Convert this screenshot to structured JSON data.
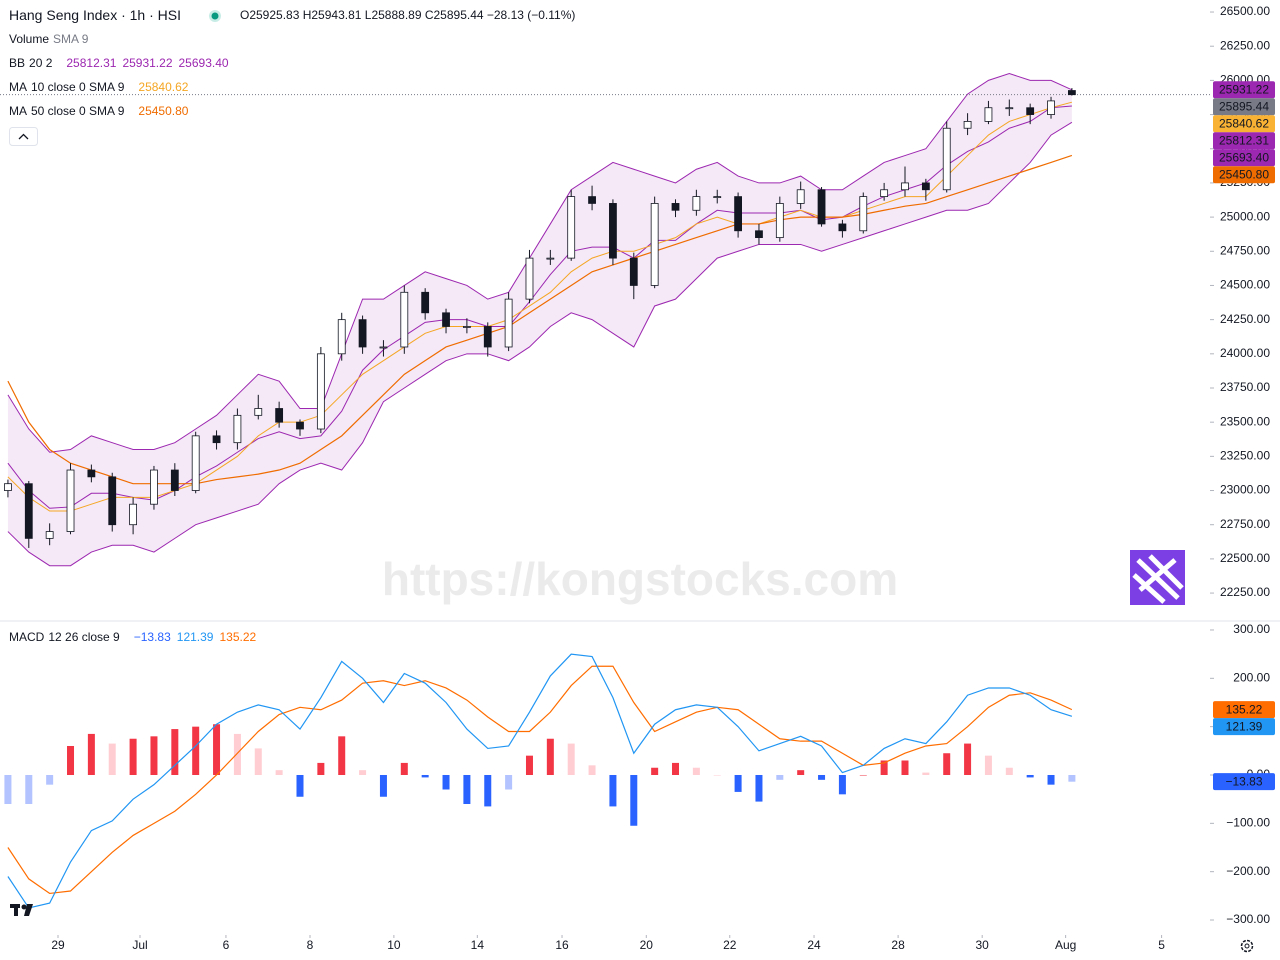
{
  "chart_data": [
    {
      "type": "candlestick",
      "title": "Hang Seng Index · 1h · HSI",
      "ohlc_label": "O25925.83 H25943.81 L25888.89 C25895.44 −28.13 (−0.11%)",
      "watermark": "https://kongstocks.com",
      "legend_rows": [
        {
          "name": "Volume",
          "params": "SMA 9",
          "values": [],
          "color": "#131722"
        },
        {
          "name": "BB",
          "params": "20 2",
          "values": [
            "25812.31",
            "25931.22",
            "25693.40"
          ],
          "color": "#9c27b0"
        },
        {
          "name": "MA",
          "params": "10 close 0 SMA 9",
          "values": [
            "25840.62"
          ],
          "color": "#f5a623"
        },
        {
          "name": "MA",
          "params": "50 close 0 SMA 9",
          "values": [
            "25450.80"
          ],
          "color": "#ef6c00"
        }
      ],
      "x": [
        0,
        1,
        2,
        3,
        4,
        5,
        6,
        7,
        8,
        9,
        10,
        11,
        12,
        13,
        14,
        15,
        16,
        17,
        18,
        19,
        20,
        21,
        22,
        23,
        24,
        25,
        26,
        27,
        28,
        29,
        30,
        31,
        32,
        33,
        34,
        35,
        36,
        37,
        38,
        39,
        40,
        41,
        42,
        43,
        44,
        45,
        46,
        47,
        48,
        49,
        50,
        51
      ],
      "open": [
        23000,
        23050,
        22650,
        22700,
        23150,
        23100,
        22750,
        22900,
        23150,
        23000,
        23400,
        23350,
        23550,
        23600,
        23500,
        23450,
        24000,
        24250,
        24050,
        24050,
        24450,
        24300,
        24200,
        24200,
        24050,
        24400,
        24700,
        24700,
        25150,
        25100,
        24700,
        24500,
        25100,
        25050,
        25150,
        25150,
        24900,
        24850,
        25100,
        25200,
        24950,
        24900,
        25150,
        25200,
        25250,
        25200,
        25650,
        25700,
        25800,
        25800,
        25750,
        25925.83
      ],
      "high": [
        23080,
        23070,
        22760,
        23200,
        23190,
        23130,
        22950,
        23180,
        23200,
        23430,
        23440,
        23600,
        23700,
        23650,
        23520,
        24050,
        24300,
        24280,
        24100,
        24500,
        24480,
        24330,
        24260,
        24230,
        24450,
        24760,
        24760,
        25200,
        25230,
        25130,
        24740,
        25150,
        25130,
        25200,
        25200,
        25180,
        24950,
        25150,
        25260,
        25220,
        24980,
        25180,
        25250,
        25370,
        25280,
        25700,
        25760,
        25850,
        25860,
        25830,
        25880,
        25943.81
      ],
      "low": [
        22950,
        22580,
        22600,
        22680,
        23060,
        22700,
        22680,
        22860,
        22960,
        22980,
        23300,
        23300,
        23520,
        23460,
        23400,
        23420,
        23950,
        24000,
        23980,
        24000,
        24250,
        24150,
        24150,
        23980,
        24020,
        24370,
        24650,
        24680,
        25050,
        24650,
        24400,
        24480,
        25000,
        25010,
        25100,
        24850,
        24800,
        24820,
        25060,
        24930,
        24850,
        24880,
        25120,
        25150,
        25120,
        25180,
        25600,
        25680,
        25740,
        25680,
        25720,
        25888.89
      ],
      "close": [
        23050,
        22650,
        22700,
        23150,
        23100,
        22750,
        22900,
        23150,
        23000,
        23400,
        23350,
        23550,
        23600,
        23500,
        23450,
        24000,
        24250,
        24050,
        24050,
        24450,
        24300,
        24200,
        24200,
        24050,
        24400,
        24700,
        24700,
        25150,
        25100,
        24700,
        24500,
        25100,
        25050,
        25150,
        25150,
        24900,
        24850,
        25100,
        25200,
        24950,
        24900,
        25150,
        25200,
        25250,
        25200,
        25650,
        25700,
        25800,
        25800,
        25750,
        25850,
        25895.44
      ],
      "up_color": "#ffffff",
      "down_color": "#131722",
      "bands": {
        "color": "#9c27b0",
        "fill": "#9c27b0",
        "upper": [
          23700,
          23450,
          23280,
          23300,
          23400,
          23350,
          23300,
          23300,
          23350,
          23450,
          23550,
          23700,
          23850,
          23800,
          23600,
          23600,
          24000,
          24400,
          24400,
          24500,
          24600,
          24550,
          24500,
          24400,
          24450,
          24700,
          24950,
          25200,
          25300,
          25400,
          25350,
          25300,
          25250,
          25350,
          25400,
          25300,
          25250,
          25250,
          25300,
          25200,
          25200,
          25300,
          25400,
          25450,
          25500,
          25700,
          25900,
          26000,
          26050,
          26000,
          26000,
          25931.22
        ],
        "basis": [
          23200,
          23000,
          22870,
          22880,
          22980,
          22980,
          22950,
          22930,
          23000,
          23100,
          23180,
          23280,
          23380,
          23430,
          23380,
          23400,
          23580,
          23880,
          24030,
          24130,
          24230,
          24250,
          24250,
          24200,
          24200,
          24380,
          24580,
          24750,
          24780,
          24780,
          24700,
          24830,
          24830,
          24950,
          25050,
          25030,
          25030,
          25030,
          25050,
          24980,
          25000,
          25080,
          25150,
          25200,
          25250,
          25380,
          25480,
          25550,
          25650,
          25700,
          25800,
          25812.31
        ],
        "lower": [
          22700,
          22550,
          22450,
          22450,
          22550,
          22600,
          22600,
          22550,
          22650,
          22750,
          22800,
          22850,
          22900,
          23050,
          23150,
          23200,
          23150,
          23350,
          23650,
          23750,
          23850,
          23950,
          24000,
          24000,
          23950,
          24050,
          24200,
          24300,
          24250,
          24150,
          24050,
          24350,
          24400,
          24550,
          24700,
          24750,
          24800,
          24800,
          24800,
          24750,
          24800,
          24850,
          24900,
          24950,
          25000,
          25050,
          25050,
          25100,
          25250,
          25400,
          25600,
          25693.4
        ]
      },
      "lines": [
        {
          "color": "#f5a623",
          "values": [
            23100,
            22950,
            22850,
            22850,
            22900,
            22950,
            22950,
            22950,
            23000,
            23050,
            23150,
            23250,
            23400,
            23500,
            23500,
            23550,
            23700,
            23850,
            23950,
            24050,
            24150,
            24200,
            24200,
            24200,
            24250,
            24350,
            24450,
            24600,
            24700,
            24750,
            24750,
            24800,
            24850,
            24950,
            25000,
            24950,
            24950,
            25000,
            25050,
            25000,
            25000,
            25050,
            25100,
            25150,
            25150,
            25300,
            25450,
            25600,
            25700,
            25750,
            25800,
            25840.62
          ]
        },
        {
          "color": "#ef6c00",
          "values": [
            23800,
            23500,
            23300,
            23200,
            23150,
            23100,
            23050,
            23050,
            23050,
            23050,
            23080,
            23100,
            23120,
            23150,
            23200,
            23300,
            23400,
            23550,
            23700,
            23850,
            23950,
            24050,
            24100,
            24150,
            24200,
            24300,
            24400,
            24500,
            24600,
            24650,
            24700,
            24750,
            24800,
            24850,
            24900,
            24950,
            24950,
            24980,
            25000,
            25000,
            25000,
            25020,
            25050,
            25080,
            25100,
            25150,
            25200,
            25250,
            25300,
            25350,
            25400,
            25450.8
          ]
        }
      ],
      "last_price": 25895.44,
      "xlim": [
        -0.38,
        57.62
      ],
      "ylim": [
        22053,
        26588
      ],
      "yticks": [
        {
          "value": 26500,
          "label": "26500.00"
        },
        {
          "value": 26250,
          "label": "26250.00"
        },
        {
          "value": 26000,
          "label": "26000.00"
        },
        {
          "value": 25750,
          "label": "25750.00"
        },
        {
          "value": 25500,
          "label": "25500.00"
        },
        {
          "value": 25250,
          "label": "25250.00"
        },
        {
          "value": 25000,
          "label": "25000.00"
        },
        {
          "value": 24750,
          "label": "24750.00"
        },
        {
          "value": 24500,
          "label": "24500.00"
        },
        {
          "value": 24250,
          "label": "24250.00"
        },
        {
          "value": 24000,
          "label": "24000.00"
        },
        {
          "value": 23750,
          "label": "23750.00"
        },
        {
          "value": 23500,
          "label": "23500.00"
        },
        {
          "value": 23250,
          "label": "23250.00"
        },
        {
          "value": 23000,
          "label": "23000.00"
        },
        {
          "value": 22750,
          "label": "22750.00"
        },
        {
          "value": 22500,
          "label": "22500.00"
        },
        {
          "value": 22250,
          "label": "22250.00"
        }
      ],
      "price_tags": [
        {
          "value": 25931.22,
          "label": "25931.22",
          "color": "#9c27b0",
          "text_color": "#ffffff"
        },
        {
          "value": 25895.44,
          "label": "25895.44",
          "color": "#787b86",
          "text_color": "#ffffff"
        },
        {
          "value": 25840.62,
          "label": "25840.62",
          "color": "#f9b233",
          "text_color": "#131722"
        },
        {
          "value": 25812.31,
          "label": "25812.31",
          "color": "#9c27b0",
          "text_color": "#ffffff"
        },
        {
          "value": 25693.4,
          "label": "25693.40",
          "color": "#9c27b0",
          "text_color": "#ffffff"
        },
        {
          "value": 25450.8,
          "label": "25450.80",
          "color": "#ef6c00",
          "text_color": "#ffffff"
        }
      ]
    },
    {
      "type": "macd",
      "title": "MACD",
      "params": "12 26 close 9",
      "legend_values": [
        "−13.83",
        "121.39",
        "135.22"
      ],
      "legend_colors": [
        "#2962ff",
        "#2196f3",
        "#ff6d00"
      ],
      "x": [
        0,
        1,
        2,
        3,
        4,
        5,
        6,
        7,
        8,
        9,
        10,
        11,
        12,
        13,
        14,
        15,
        16,
        17,
        18,
        19,
        20,
        21,
        22,
        23,
        24,
        25,
        26,
        27,
        28,
        29,
        30,
        31,
        32,
        33,
        34,
        35,
        36,
        37,
        38,
        39,
        40,
        41,
        42,
        43,
        44,
        45,
        46,
        47,
        48,
        49,
        50,
        51
      ],
      "histogram": [
        -60,
        -60,
        -20,
        60,
        85,
        65,
        75,
        80,
        95,
        100,
        105,
        85,
        55,
        10,
        -45,
        25,
        80,
        10,
        -45,
        25,
        -5,
        -30,
        -60,
        -65,
        -30,
        40,
        75,
        65,
        20,
        -65,
        -105,
        15,
        25,
        15,
        0,
        -35,
        -55,
        -10,
        10,
        -10,
        -40,
        0,
        30,
        30,
        5,
        45,
        65,
        40,
        15,
        -5,
        -20,
        -13.83
      ],
      "macd": [
        -210,
        -275,
        -265,
        -180,
        -115,
        -95,
        -50,
        -20,
        20,
        60,
        105,
        130,
        145,
        135,
        95,
        160,
        235,
        200,
        150,
        210,
        190,
        150,
        95,
        55,
        60,
        130,
        205,
        250,
        245,
        160,
        45,
        105,
        135,
        145,
        140,
        100,
        50,
        65,
        80,
        60,
        5,
        20,
        55,
        75,
        65,
        110,
        165,
        180,
        180,
        165,
        135,
        121.39
      ],
      "signal": [
        -150,
        -215,
        -245,
        -240,
        -200,
        -160,
        -125,
        -100,
        -75,
        -40,
        0,
        45,
        90,
        125,
        140,
        135,
        155,
        190,
        195,
        185,
        195,
        180,
        155,
        120,
        90,
        90,
        130,
        185,
        225,
        225,
        150,
        90,
        110,
        130,
        140,
        135,
        105,
        75,
        70,
        70,
        45,
        20,
        25,
        45,
        60,
        65,
        100,
        140,
        165,
        170,
        155,
        135.22
      ],
      "macd_color": "#2196f3",
      "signal_color": "#ff6d00",
      "histogram_colors": {
        "up_rising": "#f23645",
        "up_falling": "#ffcdd2",
        "down_falling": "#2962ff",
        "down_rising": "#b2c3ff"
      },
      "xlim": [
        -0.38,
        57.62
      ],
      "ylim": [
        -331,
        316.5
      ],
      "yticks": [
        {
          "value": 300,
          "label": "300.00"
        },
        {
          "value": 200,
          "label": "200.00"
        },
        {
          "value": 100,
          "label": "100.00"
        },
        {
          "value": 0,
          "label": "0.00"
        },
        {
          "value": -100,
          "label": "−100.00"
        },
        {
          "value": -200,
          "label": "−200.00"
        },
        {
          "value": -300,
          "label": "−300.00"
        }
      ],
      "xticks": [
        {
          "value": 2.4,
          "label": "29"
        },
        {
          "value": 6.33,
          "label": "Jul"
        },
        {
          "value": 10.45,
          "label": "6"
        },
        {
          "value": 14.48,
          "label": "8"
        },
        {
          "value": 18.5,
          "label": "10"
        },
        {
          "value": 22.5,
          "label": "14"
        },
        {
          "value": 26.56,
          "label": "16"
        },
        {
          "value": 30.6,
          "label": "20"
        },
        {
          "value": 34.6,
          "label": "22"
        },
        {
          "value": 38.64,
          "label": "24"
        },
        {
          "value": 42.67,
          "label": "28"
        },
        {
          "value": 46.7,
          "label": "30"
        },
        {
          "value": 50.7,
          "label": "Aug"
        },
        {
          "value": 55.3,
          "label": "5"
        }
      ],
      "price_tags": [
        {
          "value": 135.22,
          "label": "135.22",
          "color": "#ff6d00",
          "text_color": "#ffffff"
        },
        {
          "value": 121.39,
          "label": "121.39",
          "color": "#2196f3",
          "text_color": "#ffffff"
        },
        {
          "value": -13.83,
          "label": "−13.83",
          "color": "#2962ff",
          "text_color": "#ffffff"
        }
      ]
    }
  ]
}
